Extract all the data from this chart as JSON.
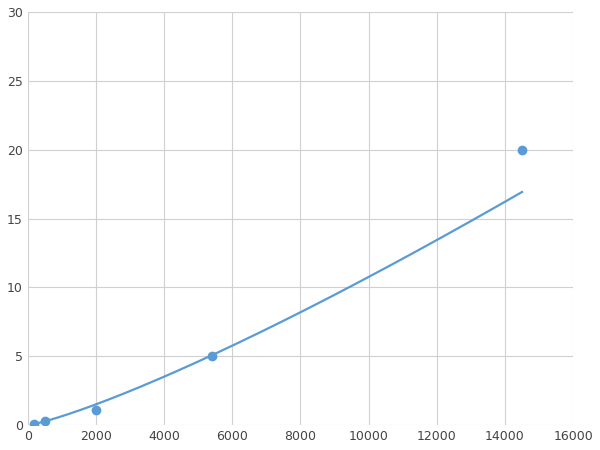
{
  "x_points": [
    200,
    500,
    2000,
    5400,
    14500
  ],
  "y_points": [
    0.1,
    0.3,
    1.1,
    5.0,
    20.0
  ],
  "line_color": "#5b9bd5",
  "marker_color": "#5b9bd5",
  "marker_size": 6,
  "linewidth": 1.6,
  "xlim": [
    0,
    16000
  ],
  "ylim": [
    0,
    30
  ],
  "xticks": [
    0,
    2000,
    4000,
    6000,
    8000,
    10000,
    12000,
    14000,
    16000
  ],
  "yticks": [
    0,
    5,
    10,
    15,
    20,
    25,
    30
  ],
  "grid_color": "#d0d0d0",
  "background_color": "#ffffff",
  "figsize": [
    6.0,
    4.5
  ],
  "dpi": 100
}
